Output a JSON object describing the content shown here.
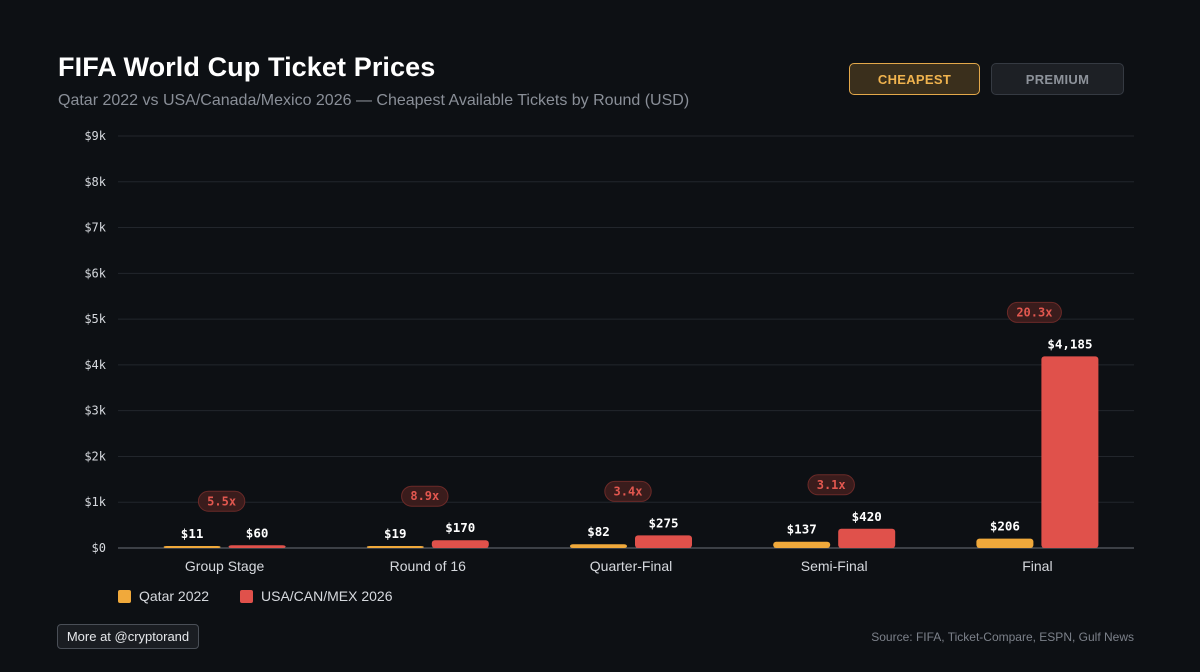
{
  "header": {
    "title": "FIFA World Cup Ticket Prices",
    "subtitle": "Qatar 2022 vs USA/Canada/Mexico 2026 — Cheapest Available Tickets by Round (USD)"
  },
  "toggles": {
    "cheapest_label": "CHEAPEST",
    "premium_label": "PREMIUM",
    "active": "cheapest"
  },
  "colors": {
    "qatar": "#f0a93b",
    "usa": "#e0514b",
    "background": "#0d1014",
    "accent": "#e3a84a"
  },
  "chart_data": {
    "type": "bar",
    "categories": [
      "Group Stage",
      "Round of 16",
      "Quarter-Final",
      "Semi-Final",
      "Final"
    ],
    "series": [
      {
        "name": "Qatar 2022",
        "values": [
          11,
          19,
          82,
          137,
          206
        ],
        "labels": [
          "$11",
          "$19",
          "$82",
          "$137",
          "$206"
        ]
      },
      {
        "name": "USA/CAN/MEX 2026",
        "values": [
          60,
          170,
          275,
          420,
          4185
        ],
        "labels": [
          "$60",
          "$170",
          "$275",
          "$420",
          "$4,185"
        ]
      }
    ],
    "ratios": [
      "5.5x",
      "8.9x",
      "3.4x",
      "3.1x",
      "20.3x"
    ],
    "ylim": [
      0,
      9000
    ],
    "yticks": [
      0,
      1000,
      2000,
      3000,
      4000,
      5000,
      6000,
      7000,
      8000,
      9000
    ],
    "ytick_labels": [
      "$0",
      "$1k",
      "$2k",
      "$3k",
      "$4k",
      "$5k",
      "$6k",
      "$7k",
      "$8k",
      "$9k"
    ],
    "grid": true,
    "legend_position": "bottom-left"
  },
  "legend": {
    "items": [
      {
        "label": "Qatar 2022"
      },
      {
        "label": "USA/CAN/MEX 2026"
      }
    ]
  },
  "footer": {
    "more_label": "More at @cryptorand",
    "source": "Source: FIFA, Ticket-Compare, ESPN, Gulf News"
  }
}
